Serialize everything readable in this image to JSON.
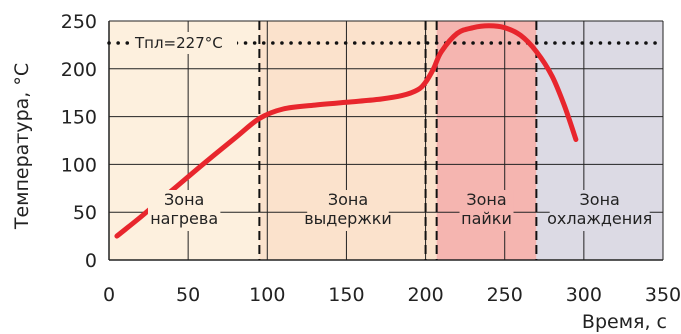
{
  "chart_data": {
    "type": "line",
    "title": "",
    "xlabel": "Время, с",
    "ylabel": "Температура, °С",
    "xlim": [
      0,
      350
    ],
    "ylim": [
      0,
      250
    ],
    "xticks": [
      0,
      50,
      100,
      150,
      200,
      250,
      300,
      350
    ],
    "yticks": [
      0,
      50,
      100,
      150,
      200,
      250
    ],
    "grid": true,
    "series": [
      {
        "color": "#e8262d",
        "x": [
          5,
          20,
          40,
          60,
          80,
          95,
          110,
          130,
          150,
          170,
          185,
          195,
          200,
          205,
          210,
          220,
          230,
          240,
          250,
          260,
          270,
          280,
          288,
          295
        ],
        "y": [
          25,
          45,
          73,
          101,
          128,
          148,
          158,
          162,
          165,
          168,
          172,
          178,
          186,
          200,
          218,
          237,
          243,
          245,
          243,
          235,
          218,
          192,
          160,
          126
        ]
      }
    ],
    "reference_line": {
      "y": 227,
      "label": "Тпл=227°С",
      "style": "dotted"
    },
    "zones": [
      {
        "x0": 0,
        "x1": 95,
        "color": "#fdf0de",
        "label_lines": [
          "Зона",
          "нагрева"
        ]
      },
      {
        "x0": 95,
        "x1": 207,
        "color": "#fbe2cc",
        "label_lines": [
          "Зона",
          "выдержки"
        ]
      },
      {
        "x0": 207,
        "x1": 270,
        "color": "#f5b5b0",
        "label_lines": [
          "Зона",
          "пайки"
        ]
      },
      {
        "x0": 270,
        "x1": 350,
        "color": "#dcdae4",
        "label_lines": [
          "Зона",
          "охлаждения"
        ]
      }
    ],
    "zone_line_extra_x": [
      200
    ]
  }
}
